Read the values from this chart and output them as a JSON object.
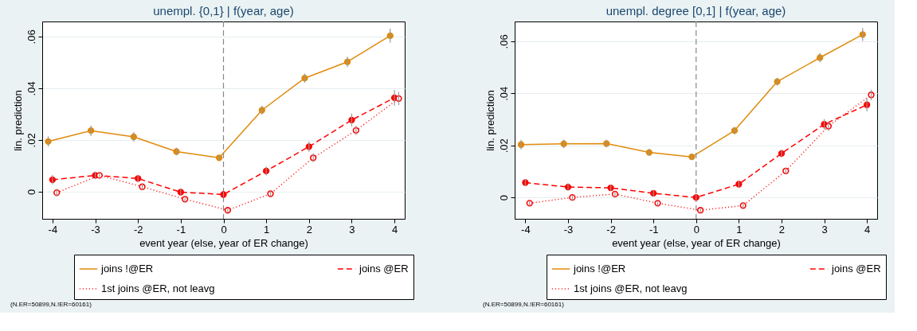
{
  "chart_data": [
    {
      "type": "line",
      "title": "unempl. {0,1} | f(year, age)",
      "xlabel": "event year (else, year of ER change)",
      "ylabel": "lin. prediction",
      "xlim": [
        -4.24,
        4.24
      ],
      "xticks": [
        -4,
        -3,
        -2,
        -1,
        0,
        1,
        2,
        3,
        4
      ],
      "ylim": [
        -0.0105,
        0.0658
      ],
      "yticks": [
        {
          "value": 0,
          "label": "0"
        },
        {
          "value": 0.02,
          "label": ".02"
        },
        {
          "value": 0.04,
          "label": ".04"
        },
        {
          "value": 0.06,
          "label": ".06"
        }
      ],
      "grid": "y",
      "legend": "bottom",
      "marker": "circle",
      "ref_lines": [
        {
          "axis": "x",
          "value": 0,
          "color": "#888888",
          "line_style": "dashed"
        }
      ],
      "annotations": [
        "(N.ER=50899,N.!ER=60161)"
      ],
      "series": [
        {
          "name": "joins !@ER",
          "color": "#e08a0b",
          "line_style": "solid",
          "x": [
            -4.1,
            -3.1,
            -2.1,
            -1.1,
            -0.1,
            0.9,
            1.9,
            2.9,
            3.9
          ],
          "values": [
            0.0194,
            0.0236,
            0.0212,
            0.0155,
            0.0131,
            0.0315,
            0.0439,
            0.0502,
            0.0603
          ],
          "errors": [
            0.002,
            0.002,
            0.0018,
            0.0015,
            0.001,
            0.0017,
            0.0018,
            0.002,
            0.0027
          ]
        },
        {
          "name": "joins @ER",
          "color": "#ff0000",
          "line_style": "dashed",
          "x": [
            -4,
            -3,
            -2,
            -1,
            0,
            1,
            2,
            3,
            4
          ],
          "values": [
            0.0046,
            0.0063,
            0.0051,
            -0.0002,
            -0.0011,
            0.008,
            0.0174,
            0.0277,
            0.0363
          ],
          "errors": [
            0.0018,
            0.0015,
            0.0012,
            0.0012,
            0.001,
            0.0017,
            0.002,
            0.0025,
            0.003
          ]
        },
        {
          "name": "1st joins @ER, not leavg",
          "color": "#ff0000",
          "line_style": "dotted",
          "x": [
            -3.9,
            -2.9,
            -1.9,
            -0.9,
            0.1,
            1.1,
            2.1,
            3.1,
            4.1
          ],
          "values": [
            -0.0004,
            0.0063,
            0.0019,
            -0.0029,
            -0.0072,
            -0.0008,
            0.0131,
            0.0237,
            0.036
          ],
          "errors": [
            0.0015,
            0.0012,
            0.0012,
            0.0012,
            0.001,
            0.0012,
            0.0017,
            0.0018,
            0.0025
          ]
        }
      ]
    },
    {
      "type": "line",
      "title": "unempl. degree [0,1] | f(year, age)",
      "xlabel": "event year (else, year of ER change)",
      "ylabel": "lin. prediction",
      "xlim": [
        -4.25,
        4.24
      ],
      "xticks": [
        -4,
        -3,
        -2,
        -1,
        0,
        1,
        2,
        3,
        4
      ],
      "ylim": [
        -0.0082,
        0.0676
      ],
      "yticks": [
        {
          "value": 0,
          "label": "0"
        },
        {
          "value": 0.02,
          "label": ".02"
        },
        {
          "value": 0.04,
          "label": ".04"
        },
        {
          "value": 0.06,
          "label": ".06"
        }
      ],
      "grid": "y",
      "legend": "bottom",
      "marker": "circle",
      "ref_lines": [
        {
          "axis": "x",
          "value": 0,
          "color": "#888888",
          "line_style": "dashed"
        }
      ],
      "annotations": [
        "(N.ER=50899,N.!ER=60161)"
      ],
      "series": [
        {
          "name": "joins !@ER",
          "color": "#e08a0b",
          "line_style": "solid",
          "x": [
            -4.1,
            -3.1,
            -2.1,
            -1.1,
            -0.1,
            0.9,
            1.9,
            2.9,
            3.9
          ],
          "values": [
            0.0203,
            0.0206,
            0.0207,
            0.0173,
            0.0156,
            0.0257,
            0.0445,
            0.0537,
            0.0626
          ],
          "errors": [
            0.0018,
            0.0017,
            0.0015,
            0.0013,
            0.0012,
            0.0014,
            0.0015,
            0.0018,
            0.0025
          ]
        },
        {
          "name": "joins @ER",
          "color": "#ff0000",
          "line_style": "dashed",
          "x": [
            -4,
            -3,
            -2,
            -1,
            0,
            1,
            2,
            3,
            4
          ],
          "values": [
            0.0057,
            0.004,
            0.0037,
            0.0016,
            0,
            0.0051,
            0.0169,
            0.0281,
            0.0356
          ],
          "errors": [
            0.0014,
            0.0014,
            0.0012,
            0.0012,
            0.0012,
            0.0012,
            0.0015,
            0.002,
            0.0025
          ]
        },
        {
          "name": "1st joins @ER, not leavg",
          "color": "#ff0000",
          "line_style": "dotted",
          "x": [
            -3.9,
            -2.9,
            -1.9,
            -0.9,
            0.1,
            1.1,
            2.1,
            3.1,
            4.1
          ],
          "values": [
            -0.0022,
            0,
            0.0013,
            -0.0022,
            -0.0049,
            -0.0031,
            0.0102,
            0.0274,
            0.0394
          ],
          "errors": [
            0.001,
            0.001,
            0.001,
            0.001,
            0.001,
            0.001,
            0.0012,
            0.0018,
            0.002
          ]
        }
      ]
    }
  ]
}
